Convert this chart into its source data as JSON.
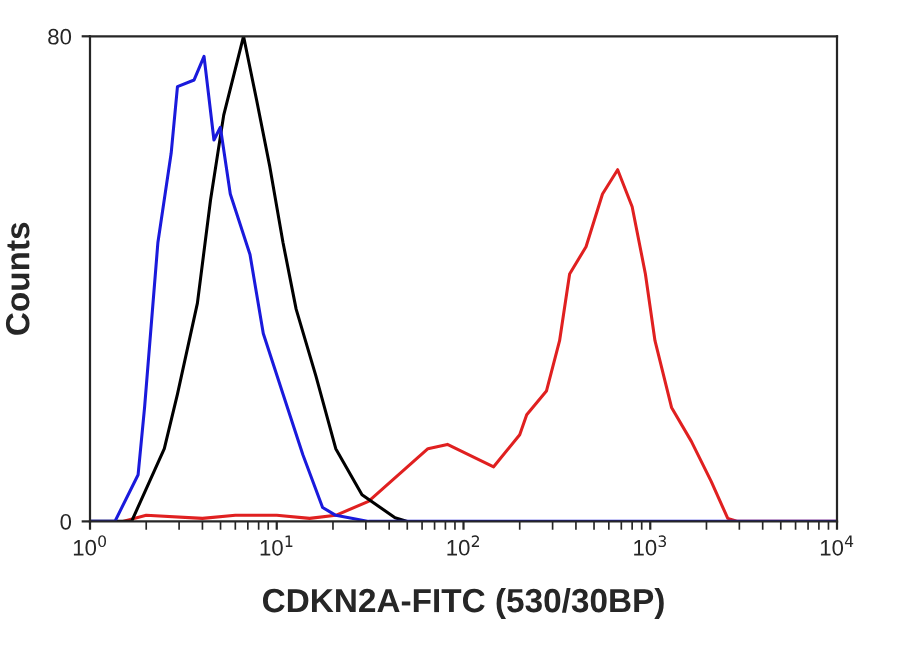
{
  "chart_data": {
    "type": "line",
    "xlabel": "CDKN2A-FITC (530/30BP)",
    "ylabel": "Counts",
    "log": "x",
    "grid": false,
    "xlim": [
      1,
      10000
    ],
    "xticks": [
      {
        "value": 1,
        "label": "10$^{0}$"
      },
      {
        "value": 10,
        "label": "10$^{1}$"
      },
      {
        "value": 100,
        "label": "10$^{2}$"
      },
      {
        "value": 1000,
        "label": "10$^{3}$"
      },
      {
        "value": 10000,
        "label": "10$^{4}$"
      }
    ],
    "ylim": [
      0,
      80
    ],
    "yticks": [
      0,
      80
    ],
    "series": [
      {
        "color": "#e02020",
        "x": [
          1.5,
          2,
          4,
          6,
          10,
          15,
          20.7,
          31,
          64.5,
          82,
          145,
          200,
          218,
          278,
          327,
          370,
          453,
          555,
          669,
          800,
          942,
          1060,
          1300,
          1660,
          2120,
          2600,
          2940,
          10000
        ],
        "values": [
          0,
          1,
          0.5,
          1,
          1,
          0.5,
          1,
          3.3,
          12,
          12.7,
          9,
          14.3,
          17.6,
          21.5,
          29.8,
          40.8,
          45.3,
          54,
          58,
          51.9,
          40.8,
          29.8,
          18.8,
          13.2,
          6.6,
          0.5,
          0,
          0
        ]
      },
      {
        "color": "#000000",
        "x": [
          1,
          1.67,
          2.5,
          2.94,
          3.76,
          4.42,
          5.2,
          6.64,
          7.8,
          9.18,
          10.8,
          12.7,
          16.2,
          20.7,
          28.6,
          43,
          50
        ],
        "values": [
          0,
          0,
          12,
          21,
          36,
          53,
          67,
          80,
          69.5,
          58.5,
          46,
          35,
          24,
          12,
          4.4,
          0.6,
          0
        ]
      },
      {
        "color": "#1a1adc",
        "x": [
          1,
          1.36,
          1.81,
          1.96,
          2.31,
          2.72,
          2.94,
          3.61,
          4.08,
          4.61,
          4.99,
          5.64,
          7.19,
          8.47,
          10.8,
          13.8,
          17.6,
          20.7,
          31,
          10000
        ],
        "values": [
          0,
          0,
          7.7,
          18.8,
          46,
          60.7,
          71.7,
          72.8,
          76.7,
          62.9,
          65,
          54,
          44,
          31,
          21,
          11,
          2.3,
          1,
          0,
          0
        ]
      }
    ]
  }
}
